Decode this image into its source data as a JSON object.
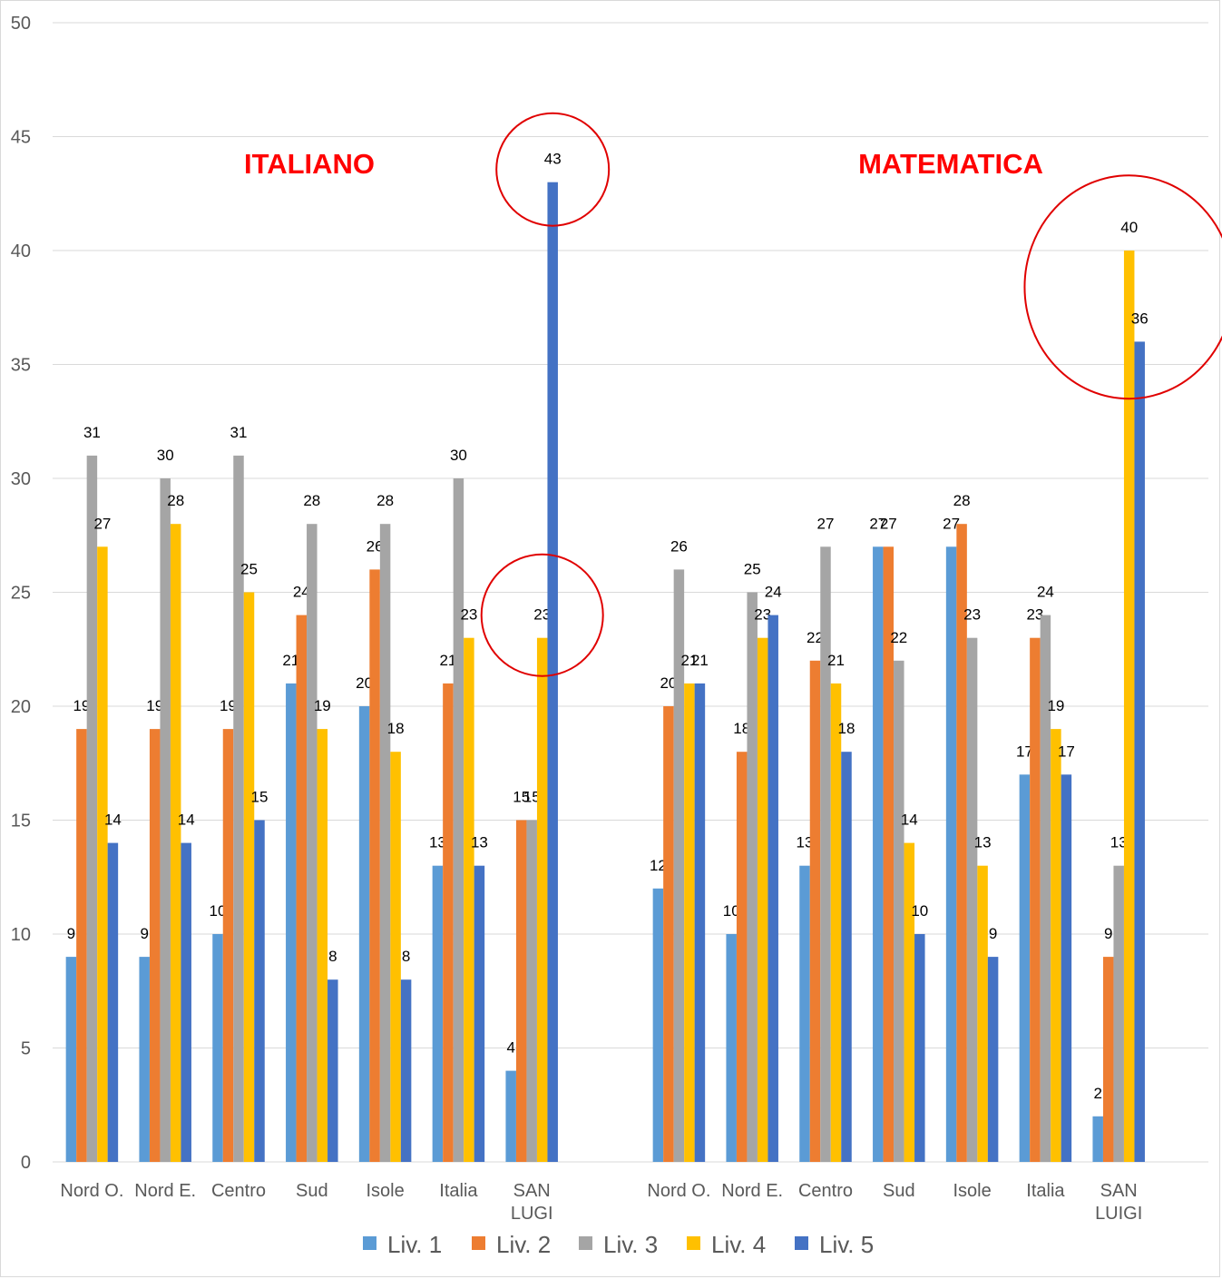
{
  "chart_data": {
    "type": "bar",
    "ylim": [
      0,
      50
    ],
    "yticks": [
      0,
      5,
      10,
      15,
      20,
      25,
      30,
      35,
      40,
      45,
      50
    ],
    "grid": true,
    "legend_position": "bottom",
    "groups": [
      {
        "title": "ITALIANO",
        "categories": [
          "Nord O.",
          "Nord E.",
          "Centro",
          "Sud",
          "Isole",
          "Italia",
          "SAN LUGI"
        ],
        "series": [
          {
            "name": "Liv. 1",
            "values": [
              9,
              9,
              10,
              21,
              20,
              13,
              4
            ]
          },
          {
            "name": "Liv. 2",
            "values": [
              19,
              19,
              19,
              24,
              26,
              21,
              15
            ]
          },
          {
            "name": "Liv. 3",
            "values": [
              31,
              30,
              31,
              28,
              28,
              30,
              15
            ]
          },
          {
            "name": "Liv. 4",
            "values": [
              27,
              28,
              25,
              19,
              18,
              23,
              23
            ]
          },
          {
            "name": "Liv. 5",
            "values": [
              14,
              14,
              15,
              8,
              8,
              13,
              43
            ]
          }
        ]
      },
      {
        "title": "MATEMATICA",
        "categories": [
          "Nord O.",
          "Nord E.",
          "Centro",
          "Sud",
          "Isole",
          "Italia",
          "SAN LUIGI"
        ],
        "series": [
          {
            "name": "Liv. 1",
            "values": [
              12,
              10,
              13,
              27,
              27,
              17,
              2
            ]
          },
          {
            "name": "Liv. 2",
            "values": [
              20,
              18,
              22,
              27,
              28,
              23,
              9
            ]
          },
          {
            "name": "Liv. 3",
            "values": [
              26,
              25,
              27,
              22,
              23,
              24,
              13
            ]
          },
          {
            "name": "Liv. 4",
            "values": [
              21,
              23,
              21,
              14,
              13,
              19,
              40
            ]
          },
          {
            "name": "Liv. 5",
            "values": [
              21,
              24,
              18,
              10,
              9,
              17,
              36
            ]
          }
        ]
      }
    ],
    "colors": [
      "#5b9bd5",
      "#ed7d31",
      "#a5a5a5",
      "#ffc000",
      "#4472c4"
    ],
    "highlight_color": "#e00000"
  }
}
